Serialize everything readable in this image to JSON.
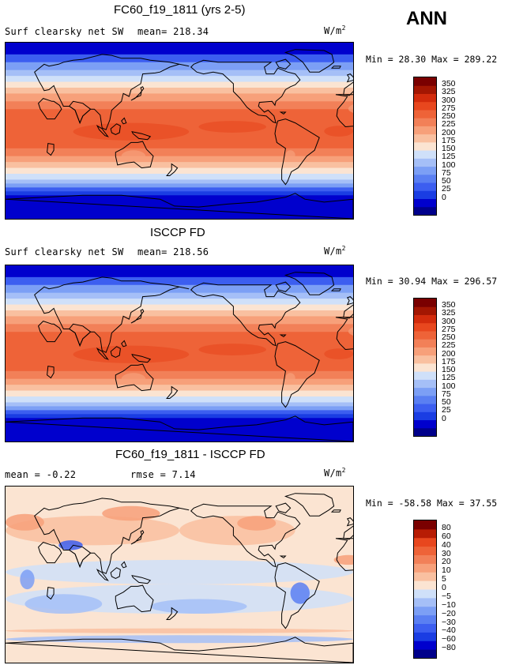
{
  "season": "ANN",
  "colors": {
    "abs_palette": [
      "#00008b",
      "#0000cd",
      "#1a3de3",
      "#3c5ef0",
      "#5a7ff2",
      "#7c9ff5",
      "#a5bff7",
      "#cfe0f9",
      "#fbe4d2",
      "#f9c0a0",
      "#f7a07a",
      "#f28058",
      "#ee6338",
      "#e8471e",
      "#d22b0c",
      "#a31602",
      "#7a0000"
    ],
    "diff_palette": [
      "#00008b",
      "#0000cd",
      "#1a3de3",
      "#3c5ef0",
      "#5a7ff2",
      "#7c9ff5",
      "#a5bff7",
      "#cfe0f9",
      "#fbe4d2",
      "#f9c0a0",
      "#f7a07a",
      "#f28058",
      "#ee6338",
      "#e8471e",
      "#b71c04",
      "#7a0000"
    ],
    "coast": "#000000"
  },
  "chart_data": [
    {
      "type": "heatmap",
      "title": "FC60_f19_1811 (yrs 2-5)",
      "variable": "Surf clearsky net SW",
      "mean_label": "mean= 218.34",
      "units": "W/m",
      "units_exp": "2",
      "minmax": "Min =  28.30 Max = 289.22",
      "min": 28.3,
      "max": 289.22,
      "mean": 218.34,
      "levels": [
        "350",
        "325",
        "300",
        "275",
        "250",
        "225",
        "200",
        "175",
        "150",
        "125",
        "100",
        "75",
        "50",
        "25",
        "0"
      ],
      "lon_range": [
        0,
        360
      ],
      "lat_range": [
        -90,
        90
      ]
    },
    {
      "type": "heatmap",
      "title": "ISCCP FD",
      "variable": "Surf clearsky net SW",
      "mean_label": "mean= 218.56",
      "units": "W/m",
      "units_exp": "2",
      "minmax": "Min =  30.94 Max = 296.57",
      "min": 30.94,
      "max": 296.57,
      "mean": 218.56,
      "levels": [
        "350",
        "325",
        "300",
        "275",
        "250",
        "225",
        "200",
        "175",
        "150",
        "125",
        "100",
        "75",
        "50",
        "25",
        "0"
      ],
      "lon_range": [
        0,
        360
      ],
      "lat_range": [
        -90,
        90
      ]
    },
    {
      "type": "heatmap",
      "title": "FC60_f19_1811 - ISCCP FD",
      "mean_label": "mean =  -0.22",
      "rmse_label": "rmse =   7.14",
      "units": "W/m",
      "units_exp": "2",
      "minmax": "Min = -58.58 Max =  37.55",
      "min": -58.58,
      "max": 37.55,
      "mean": -0.22,
      "rmse": 7.14,
      "levels": [
        "80",
        "60",
        "40",
        "30",
        "20",
        "10",
        "5",
        "0",
        "−5",
        "−10",
        "−20",
        "−30",
        "−40",
        "−60",
        "−80"
      ],
      "lon_range": [
        0,
        360
      ],
      "lat_range": [
        -90,
        90
      ]
    }
  ]
}
